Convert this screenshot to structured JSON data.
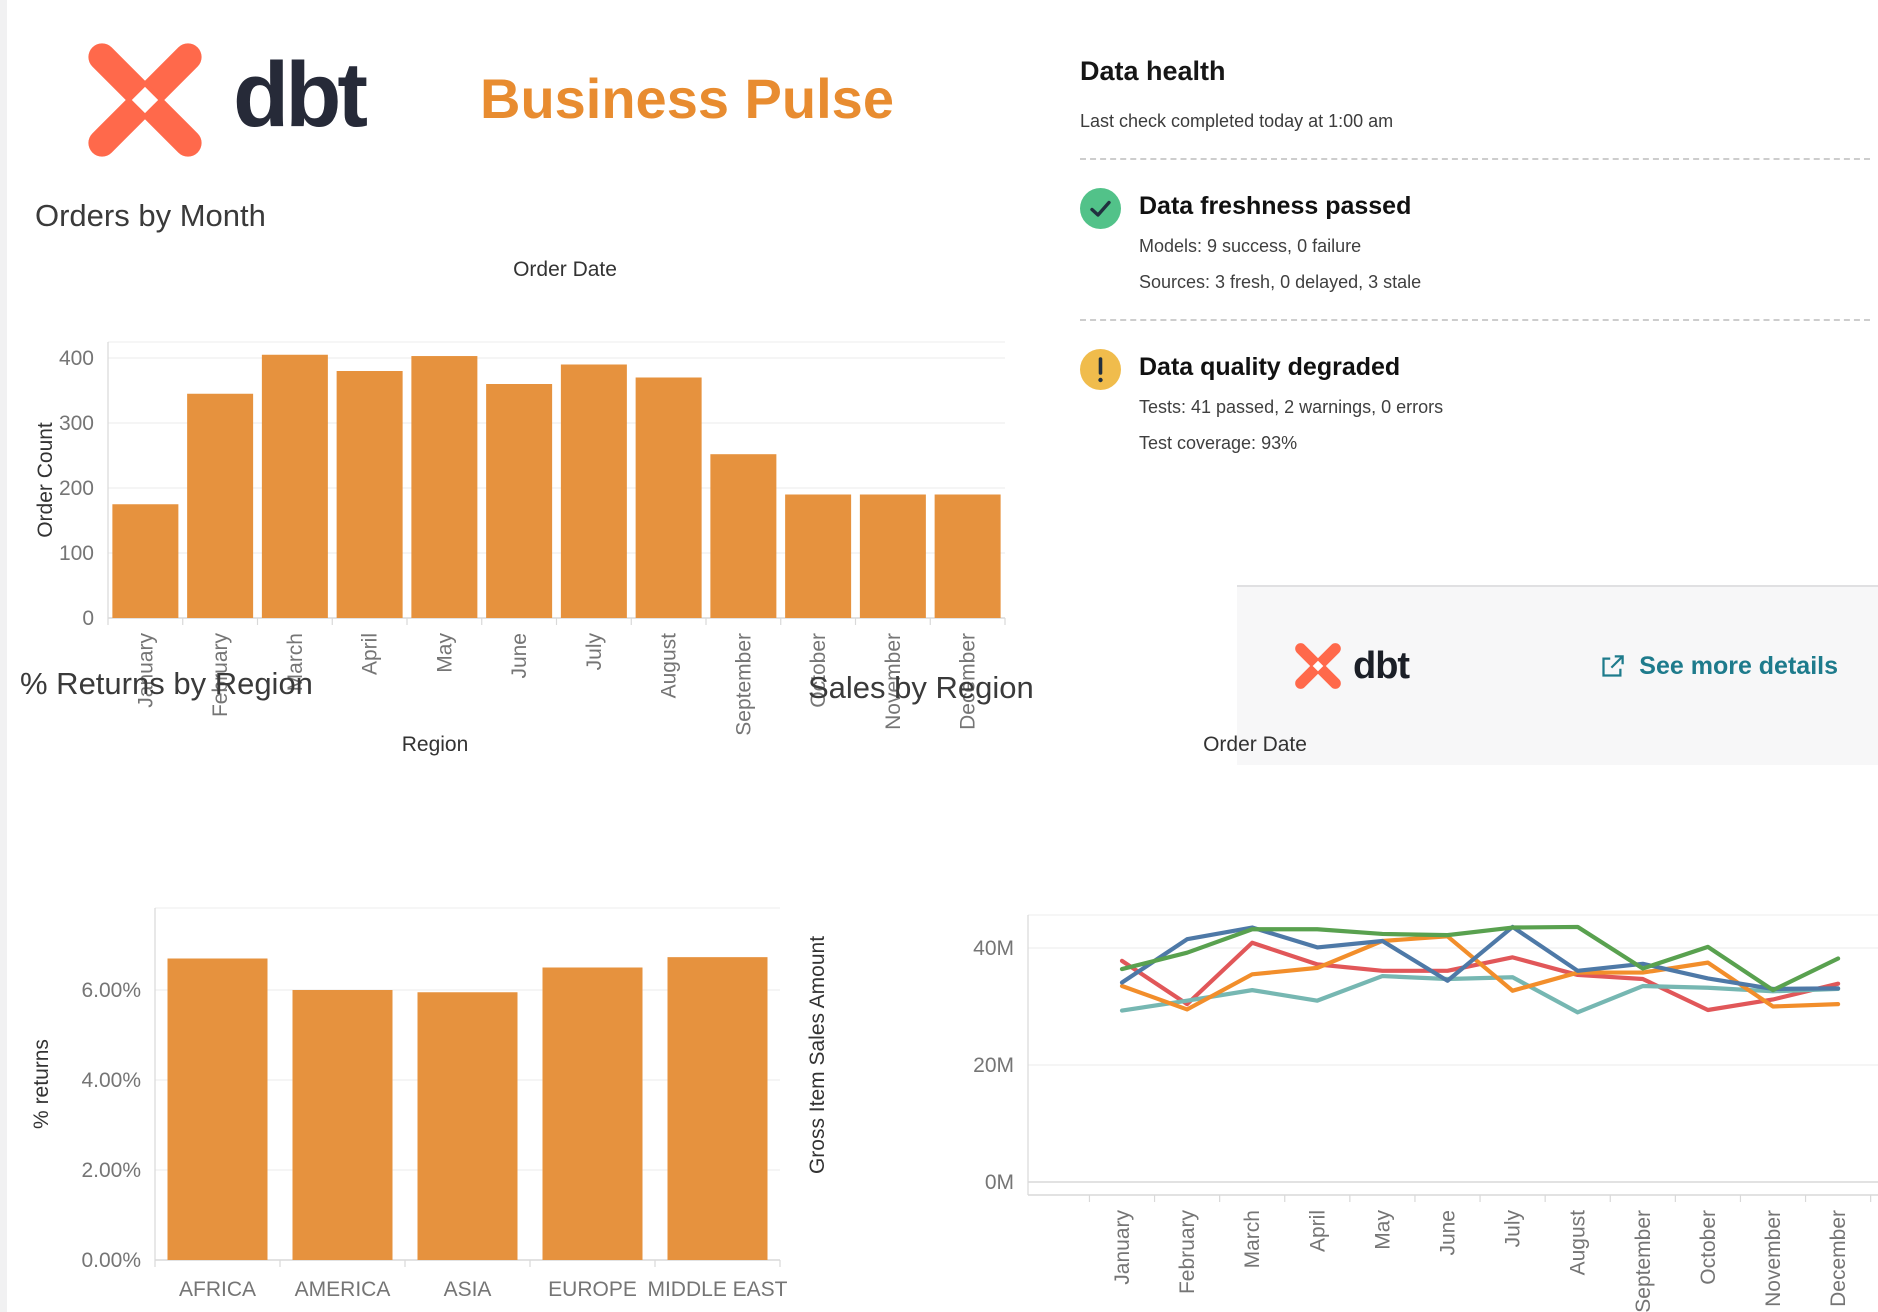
{
  "header": {
    "brand": "dbt",
    "title": "Business Pulse"
  },
  "data_health": {
    "title": "Data health",
    "subtitle": "Last check completed today at 1:00 am",
    "freshness": {
      "status": "Data freshness passed",
      "models": "Models: 9 success, 0 failure",
      "sources": "Sources: 3 fresh, 0 delayed, 3 stale"
    },
    "quality": {
      "status": "Data quality degraded",
      "tests": "Tests: 41 passed, 2 warnings, 0 errors",
      "coverage": "Test coverage: 93%"
    },
    "footer": {
      "brand": "dbt",
      "link_label": "See more details"
    }
  },
  "colors": {
    "bar_orange": "#E6923E",
    "accent_orange": "#E88C30",
    "dbt_orange": "#FF694B",
    "navy": "#262A38",
    "teal_link": "#1E7B8C",
    "status_green": "#52C289",
    "status_yellow": "#F0BC4C"
  },
  "chart_data": [
    {
      "id": "orders_by_month",
      "type": "bar",
      "title": "Orders by Month",
      "xlabel": "Order Date",
      "ylabel": "Order Count",
      "categories": [
        "January",
        "February",
        "March",
        "April",
        "May",
        "June",
        "July",
        "August",
        "September",
        "October",
        "November",
        "December"
      ],
      "values": [
        175,
        345,
        405,
        380,
        403,
        360,
        390,
        370,
        252,
        190,
        190,
        190
      ],
      "ylim": [
        0,
        425
      ],
      "yticks": [
        0,
        100,
        200,
        300,
        400
      ],
      "bar_color": "#E6923E",
      "grid": true,
      "legend": "none"
    },
    {
      "id": "returns_by_region",
      "type": "bar",
      "title": "% Returns by Region",
      "xlabel": "Region",
      "ylabel": "% returns",
      "categories": [
        "AFRICA",
        "AMERICA",
        "ASIA",
        "EUROPE",
        "MIDDLE EAST"
      ],
      "values": [
        6.7,
        6.0,
        5.95,
        6.5,
        6.73
      ],
      "ylim": [
        0,
        7.8
      ],
      "yticks": [
        0,
        2,
        4,
        6
      ],
      "ytick_format": "percent2",
      "bar_color": "#E6923E",
      "grid": true,
      "legend": "none"
    },
    {
      "id": "sales_by_region",
      "type": "line",
      "title": "Sales by Region",
      "xlabel": "Order Date",
      "ylabel": "Gross Item Sales Amount",
      "unit": "M",
      "categories": [
        "January",
        "February",
        "March",
        "April",
        "May",
        "June",
        "July",
        "August",
        "September",
        "October",
        "November",
        "December"
      ],
      "series": [
        {
          "name": "series-red",
          "color": "#E15759",
          "values": [
            37.8,
            30.4,
            40.9,
            37.2,
            36.1,
            36.1,
            38.4,
            35.4,
            34.7,
            29.4,
            31.2,
            33.9
          ]
        },
        {
          "name": "series-teal",
          "color": "#76B7B2",
          "values": [
            29.3,
            31.0,
            32.8,
            31.0,
            35.2,
            34.7,
            35.0,
            29.0,
            33.5,
            33.2,
            32.6,
            33.0
          ]
        },
        {
          "name": "series-orange",
          "color": "#F28E2B",
          "values": [
            33.5,
            29.5,
            35.5,
            36.6,
            41.2,
            42.0,
            32.7,
            35.8,
            35.8,
            37.5,
            30.0,
            30.4
          ]
        },
        {
          "name": "series-blue",
          "color": "#4E79A7",
          "values": [
            34.1,
            41.5,
            43.5,
            40.1,
            41.2,
            34.4,
            43.6,
            36.1,
            37.3,
            34.8,
            33.0,
            33.1
          ]
        },
        {
          "name": "series-green",
          "color": "#59A14F",
          "values": [
            36.4,
            39.2,
            43.2,
            43.2,
            42.4,
            42.2,
            43.5,
            43.6,
            36.5,
            40.2,
            32.8,
            38.2
          ]
        }
      ],
      "ylim": [
        0,
        45.6
      ],
      "yticks": [
        0,
        20,
        40
      ],
      "grid": true,
      "legend": "none"
    }
  ]
}
